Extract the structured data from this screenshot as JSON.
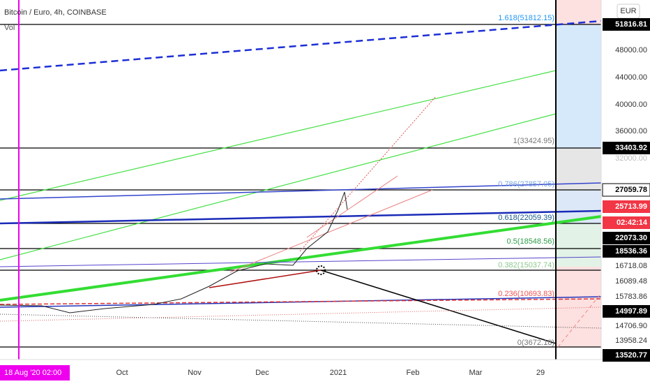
{
  "header": {
    "title": "Bitcoin / Euro, 4h, COINBASE",
    "volume": "Vol",
    "currency": "EUR"
  },
  "price_axis": [
    "51816.81",
    "48000.00",
    "44000.00",
    "40000.00",
    "36000.00",
    "33403.92",
    "32000.00",
    "27059.78",
    "25713.99",
    "02:42:14",
    "22073.30",
    "18536.36",
    "16718.08",
    "16089.48",
    "15783.86",
    "14997.89",
    "14706.90",
    "13958.24",
    "13520.77"
  ],
  "fib_levels": [
    "1.618(51812.15)",
    "1(33424.95)",
    "0.786(27857.05)",
    "0.618(22059.39)",
    "0.5(18548.56)",
    "0.382(15037.74)",
    "0.236(10693.83)",
    "0(3672.18)"
  ],
  "time_axis": {
    "cursor": "18 Aug '20   02:00",
    "labels": [
      "Oct",
      "Nov",
      "Dec",
      "2021",
      "Feb",
      "Mar",
      "29"
    ]
  }
}
